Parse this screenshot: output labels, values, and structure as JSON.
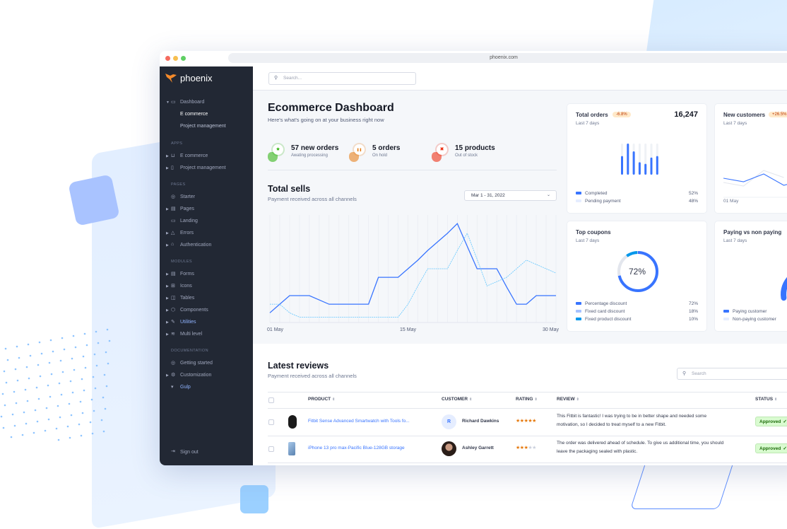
{
  "colors": {
    "primary": "#3874ff",
    "info": "#0097eb",
    "sidebar": "#222834",
    "success": "#25b003",
    "warning": "#e5780b",
    "danger": "#ec1f00"
  },
  "browser": {
    "url": "phoenix.com"
  },
  "sidebar": {
    "logo": "phoenix",
    "dashboard": {
      "label": "Dashboard",
      "children": [
        "E commerce",
        "Project management"
      ]
    },
    "sections": [
      {
        "title": "APPS",
        "items": [
          {
            "label": "E commerce",
            "icon": "cart-icon"
          },
          {
            "label": "Project management",
            "icon": "clipboard-icon"
          }
        ]
      },
      {
        "title": "PAGES",
        "items": [
          {
            "label": "Starter",
            "icon": "compass-icon"
          },
          {
            "label": "Pages",
            "icon": "layout-icon"
          },
          {
            "label": "Landing",
            "icon": "monitor-icon"
          },
          {
            "label": "Errors",
            "icon": "alert-triangle-icon"
          },
          {
            "label": "Authentication",
            "icon": "lock-icon"
          }
        ]
      },
      {
        "title": "MODULES",
        "items": [
          {
            "label": "Forms",
            "icon": "file-text-icon"
          },
          {
            "label": "Icons",
            "icon": "grid-icon"
          },
          {
            "label": "Tables",
            "icon": "columns-icon"
          },
          {
            "label": "Components",
            "icon": "package-icon"
          },
          {
            "label": "Utilities",
            "icon": "tool-icon"
          },
          {
            "label": "Multi level",
            "icon": "layers-icon"
          }
        ]
      },
      {
        "title": "DOCUMENTATION",
        "items": [
          {
            "label": "Getting started",
            "icon": "life-buoy-icon"
          },
          {
            "label": "Customization",
            "icon": "settings-icon"
          },
          {
            "label": "Gulp",
            "icon": "gulp-icon"
          }
        ]
      }
    ],
    "sign_out": "Sign out"
  },
  "header": {
    "search_placeholder": "Search..."
  },
  "page": {
    "title": "Ecommerce Dashboard",
    "subtitle": "Here's what's going on at your business right now"
  },
  "stats": [
    {
      "value": "57 new orders",
      "label": "Awating processing",
      "icon": "star-icon",
      "color": "#25b003"
    },
    {
      "value": "5 orders",
      "label": "On hold",
      "icon": "pause-icon",
      "color": "#e5780b"
    },
    {
      "value": "15 products",
      "label": "Out of stock",
      "icon": "x-icon",
      "color": "#ec1f00"
    }
  ],
  "total_sells": {
    "title": "Total sells",
    "subtitle": "Payment received across all channels",
    "date_range": "Mar 1 - 31, 2022"
  },
  "chart_data": [
    {
      "type": "line",
      "x_ticks": [
        "01 May",
        "15 May",
        "30 May"
      ],
      "x": [
        "01",
        "02",
        "03",
        "04",
        "05",
        "06",
        "07",
        "08",
        "09",
        "10",
        "11",
        "12",
        "13",
        "14",
        "15",
        "16",
        "17",
        "18",
        "19",
        "20",
        "21",
        "22",
        "23",
        "24",
        "25",
        "26",
        "27",
        "28",
        "29",
        "30"
      ],
      "ylim": [
        0,
        100
      ],
      "grid": "vertical",
      "series": [
        {
          "style": "solid",
          "color": "#3874ff",
          "values": [
            9,
            17,
            25,
            25,
            25,
            21,
            17,
            17,
            17,
            17,
            17,
            42,
            42,
            42,
            50,
            58,
            67,
            75,
            83,
            92,
            71,
            50,
            50,
            50,
            33,
            17,
            17,
            25,
            25,
            25
          ]
        },
        {
          "style": "dashed",
          "color": "#60c6ff",
          "values": [
            17,
            17,
            9,
            5,
            5,
            5,
            5,
            5,
            5,
            5,
            5,
            5,
            5,
            5,
            17,
            34,
            50,
            50,
            50,
            67,
            83,
            59,
            34,
            38,
            42,
            50,
            58,
            54,
            50,
            46
          ]
        }
      ]
    },
    {
      "type": "bar",
      "title": "Total orders",
      "values": [
        60,
        100,
        75,
        40,
        35,
        55,
        60
      ],
      "ylim": [
        0,
        100
      ]
    },
    {
      "type": "pie",
      "title": "Top coupons",
      "values": [
        72,
        18,
        10
      ]
    },
    {
      "type": "line",
      "title": "New customers",
      "x_ticks": [
        "01 May"
      ],
      "series": [
        {
          "color": "#3874ff",
          "values": [
            50,
            40,
            62,
            30,
            45
          ]
        },
        {
          "color": "#e3e6ed",
          "values": [
            38,
            28,
            72,
            52
          ]
        }
      ]
    },
    {
      "type": "gauge",
      "title": "Paying vs non paying",
      "values": [
        30,
        70
      ]
    }
  ],
  "cards": {
    "total_orders": {
      "title": "Total orders",
      "badge": "-6.8%",
      "value": "16,247",
      "period": "Last 7 days",
      "legend": [
        {
          "label": "Completed",
          "pct": "52%",
          "color": "#3874ff"
        },
        {
          "label": "Pending payment",
          "pct": "48%",
          "color": "#e5edff"
        }
      ]
    },
    "new_customers": {
      "title": "New customers",
      "badge": "+26.5%",
      "period": "Last 7 days",
      "tick": "01 May"
    },
    "top_coupons": {
      "title": "Top coupons",
      "period": "Last 7 days",
      "center": "72%",
      "legend": [
        {
          "label": "Percentage discount",
          "pct": "72%",
          "color": "#3874ff"
        },
        {
          "label": "Fixed card discount",
          "pct": "18%",
          "color": "#a6c2ff"
        },
        {
          "label": "Fixed product discount",
          "pct": "10%",
          "color": "#0097eb"
        }
      ]
    },
    "paying": {
      "title": "Paying vs non paying",
      "period": "Last 7 days",
      "legend": [
        {
          "label": "Paying customer",
          "color": "#3874ff"
        },
        {
          "label": "Non-paying customer",
          "color": "#e5edff"
        }
      ]
    }
  },
  "reviews": {
    "title": "Latest reviews",
    "subtitle": "Payment received across all channels",
    "search_placeholder": "Search",
    "columns": [
      "PRODUCT",
      "CUSTOMER",
      "RATING",
      "REVIEW",
      "STATUS"
    ],
    "rows": [
      {
        "product": "Fitbit Sense Advanced Smartwatch with Tools fo...",
        "customer": "Richard Dawkins",
        "initial": "R",
        "rating": 5,
        "review": [
          "This Fitbit is fantastic! I was trying to be in better shape and needed some",
          "motivation, so I decided to treat myself to a new Fitbit."
        ],
        "status": "Approved"
      },
      {
        "product": "iPhone 13 pro max-Pacific Blue-128GB storage",
        "customer": "Ashley Garrett",
        "rating": 3,
        "review": [
          "The order was delivered ahead of schedule. To give us additional time, you should",
          "leave the packaging sealed with plastic."
        ],
        "status": "Approved"
      }
    ]
  }
}
